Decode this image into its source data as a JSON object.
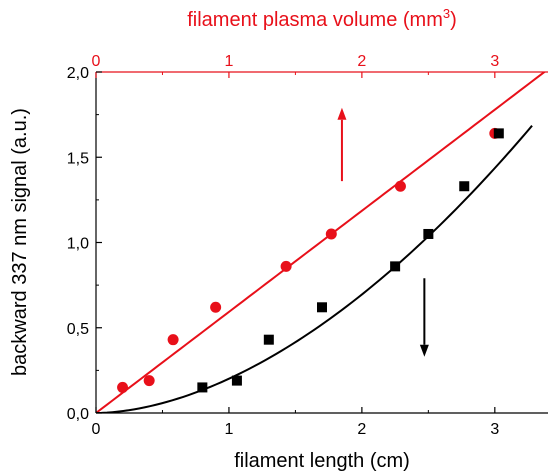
{
  "chart_data": {
    "type": "scatter",
    "x_axis": {
      "label": "filament length (cm)",
      "range": [
        0,
        3.4
      ],
      "ticks": [
        0,
        1,
        2,
        3
      ],
      "tick_labels": [
        "0",
        "1",
        "2",
        "3"
      ]
    },
    "x2_axis": {
      "label_prefix": "filament plasma volume (mm",
      "label_exp": "3",
      "label_suffix": ")",
      "range": [
        0,
        3.4
      ],
      "ticks": [
        0,
        1,
        2,
        3
      ],
      "tick_labels": [
        "0",
        "1",
        "2",
        "3"
      ],
      "color": "#e8101a"
    },
    "y_axis": {
      "label": "backward 337 nm signal (a.u.)",
      "range": [
        0,
        2.0
      ],
      "ticks": [
        0,
        0.5,
        1.0,
        1.5,
        2.0
      ],
      "tick_labels": [
        "0,0",
        "0,5",
        "1,0",
        "1,5",
        "2,0"
      ]
    },
    "series": [
      {
        "axis": "top",
        "marker": "circle",
        "color": "#e8101a",
        "points": [
          {
            "x": 0.2,
            "y": 0.15
          },
          {
            "x": 0.4,
            "y": 0.19
          },
          {
            "x": 0.58,
            "y": 0.43
          },
          {
            "x": 0.9,
            "y": 0.62
          },
          {
            "x": 1.43,
            "y": 0.86
          },
          {
            "x": 1.77,
            "y": 1.05
          },
          {
            "x": 2.29,
            "y": 1.33
          },
          {
            "x": 3.0,
            "y": 1.64
          }
        ],
        "fit": {
          "kind": "linear",
          "x_range": [
            0,
            3.4
          ],
          "slope": 0.593,
          "intercept": 0.0
        }
      },
      {
        "axis": "bottom",
        "marker": "square",
        "color": "#000000",
        "points": [
          {
            "x": 0.8,
            "y": 0.15
          },
          {
            "x": 1.06,
            "y": 0.19
          },
          {
            "x": 1.3,
            "y": 0.43
          },
          {
            "x": 1.7,
            "y": 0.62
          },
          {
            "x": 2.25,
            "y": 0.86
          },
          {
            "x": 2.5,
            "y": 1.05
          },
          {
            "x": 2.77,
            "y": 1.33
          },
          {
            "x": 3.03,
            "y": 1.64
          }
        ],
        "fit": {
          "kind": "power",
          "x_range": [
            0,
            3.28
          ],
          "coef": 0.201,
          "exp": 1.79
        }
      }
    ],
    "annotations": [
      {
        "kind": "arrow",
        "direction": "up",
        "color": "#e8101a",
        "x": 1.85,
        "y_from": 1.36,
        "y_to": 1.79
      },
      {
        "kind": "arrow",
        "direction": "down",
        "color": "#000000",
        "x": 2.47,
        "y_from": 0.79,
        "y_to": 0.33
      }
    ],
    "grid": false,
    "legend": "none"
  }
}
